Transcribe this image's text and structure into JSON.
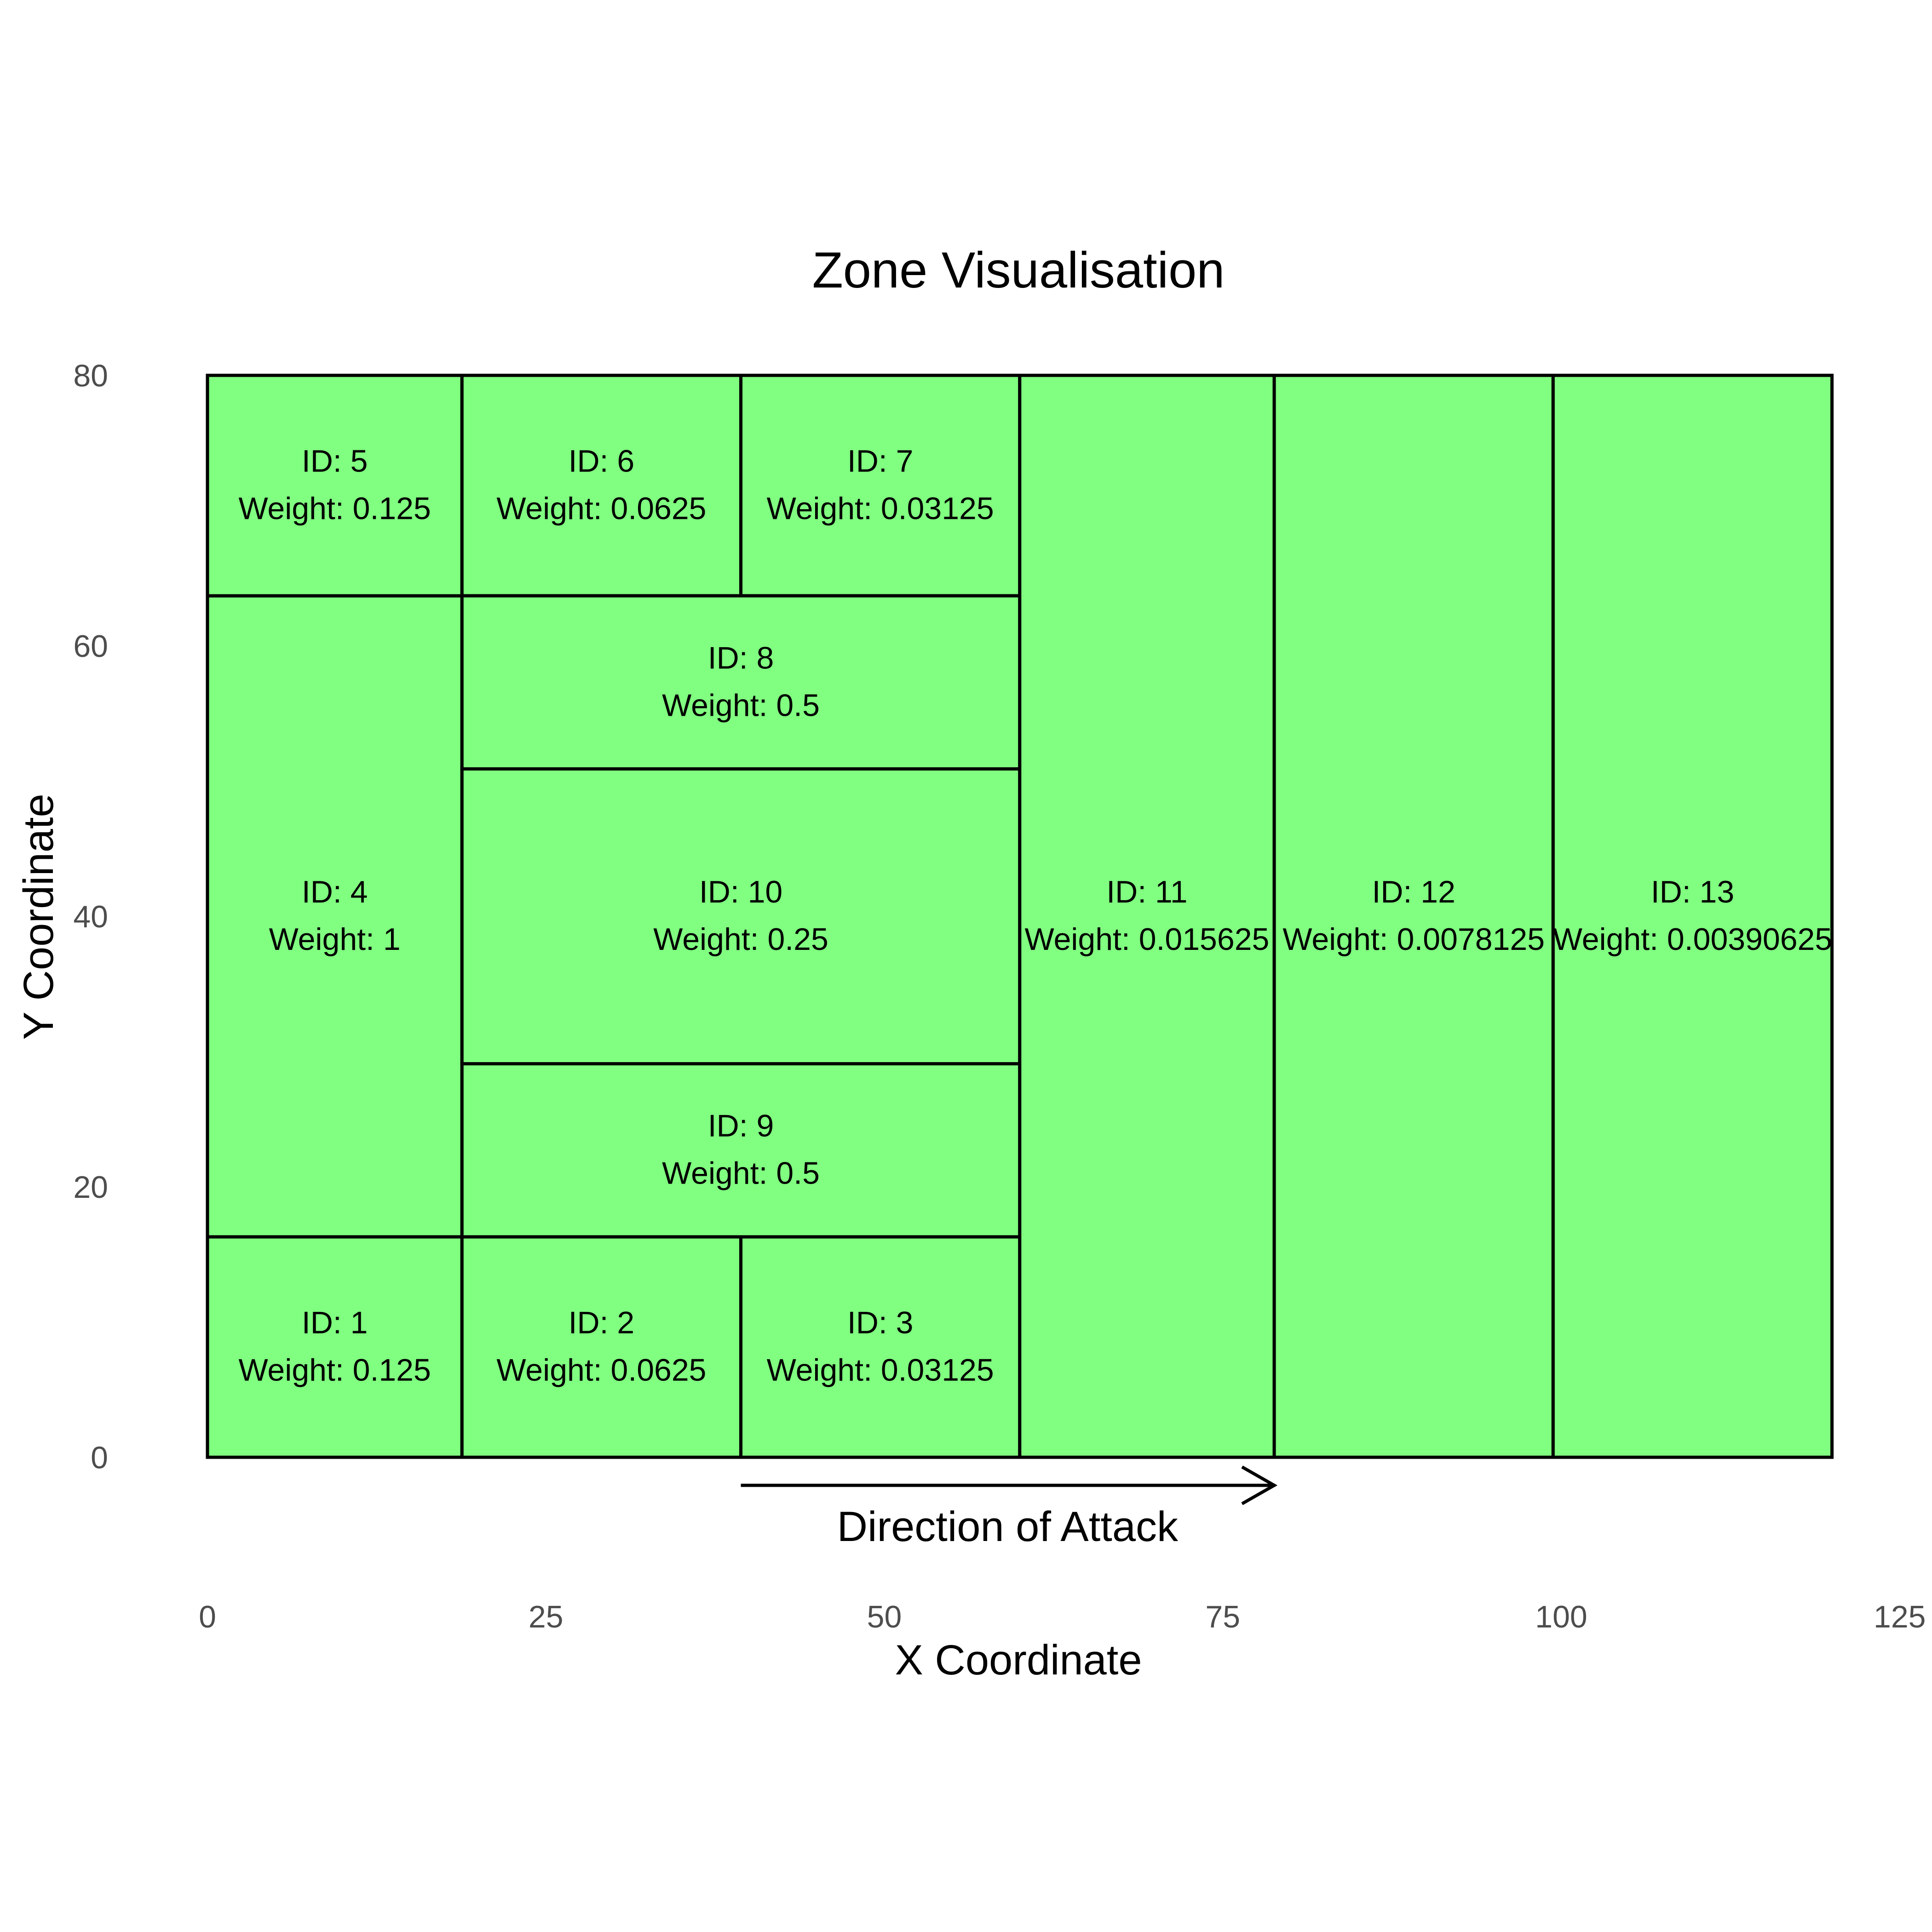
{
  "chart_data": {
    "type": "zone-map",
    "title": "Zone Visualisation",
    "xlabel": "X Coordinate",
    "ylabel": "Y Coordinate",
    "xlim": [
      0,
      125
    ],
    "ylim": [
      0,
      80
    ],
    "x_ticks": [
      "0",
      "25",
      "50",
      "75",
      "100",
      "125"
    ],
    "y_ticks": [
      "0",
      "20",
      "40",
      "60",
      "80"
    ],
    "grid": false,
    "fill_color": "#80ff80",
    "stroke_color": "#000000",
    "zones": [
      {
        "id": 1,
        "id_label": "ID: 1",
        "weight_label": "Weight: 0.125",
        "x0": 0,
        "x1": 18.8,
        "y0": 0,
        "y1": 16.3
      },
      {
        "id": 2,
        "id_label": "ID: 2",
        "weight_label": "Weight: 0.0625",
        "x0": 18.8,
        "x1": 39.4,
        "y0": 0,
        "y1": 16.3
      },
      {
        "id": 3,
        "id_label": "ID: 3",
        "weight_label": "Weight: 0.03125",
        "x0": 39.4,
        "x1": 60,
        "y0": 0,
        "y1": 16.3
      },
      {
        "id": 4,
        "id_label": "ID: 4",
        "weight_label": "Weight: 1",
        "x0": 0,
        "x1": 18.8,
        "y0": 16.3,
        "y1": 63.7
      },
      {
        "id": 5,
        "id_label": "ID: 5",
        "weight_label": "Weight: 0.125",
        "x0": 0,
        "x1": 18.8,
        "y0": 63.7,
        "y1": 80
      },
      {
        "id": 6,
        "id_label": "ID: 6",
        "weight_label": "Weight: 0.0625",
        "x0": 18.8,
        "x1": 39.4,
        "y0": 63.7,
        "y1": 80
      },
      {
        "id": 7,
        "id_label": "ID: 7",
        "weight_label": "Weight: 0.03125",
        "x0": 39.4,
        "x1": 60,
        "y0": 63.7,
        "y1": 80
      },
      {
        "id": 8,
        "id_label": "ID: 8",
        "weight_label": "Weight: 0.5",
        "x0": 18.8,
        "x1": 60,
        "y0": 50.9,
        "y1": 63.7
      },
      {
        "id": 9,
        "id_label": "ID: 9",
        "weight_label": "Weight: 0.5",
        "x0": 18.8,
        "x1": 60,
        "y0": 16.3,
        "y1": 29.1
      },
      {
        "id": 10,
        "id_label": "ID: 10",
        "weight_label": "Weight: 0.25",
        "x0": 18.8,
        "x1": 60,
        "y0": 29.1,
        "y1": 50.9
      },
      {
        "id": 11,
        "id_label": "ID: 11",
        "weight_label": "Weight: 0.015625",
        "x0": 60,
        "x1": 78.8,
        "y0": 0,
        "y1": 80
      },
      {
        "id": 12,
        "id_label": "ID: 12",
        "weight_label": "Weight: 0.0078125",
        "x0": 78.8,
        "x1": 99.4,
        "y0": 0,
        "y1": 80
      },
      {
        "id": 13,
        "id_label": "ID: 13",
        "weight_label": "Weight: 0.00390625",
        "x0": 99.4,
        "x1": 120,
        "y0": 0,
        "y1": 80
      }
    ],
    "annotation": {
      "text": "Direction of Attack",
      "arrow_from_x": 39.4,
      "arrow_to_x": 78.8
    }
  }
}
